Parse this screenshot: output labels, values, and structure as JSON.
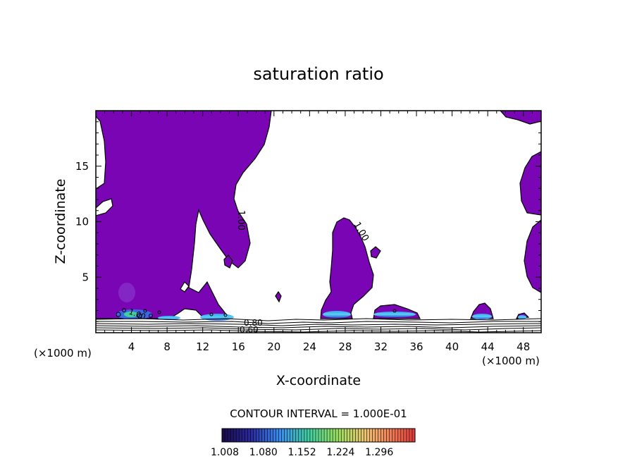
{
  "chart_data": {
    "type": "contour",
    "title": "saturation ratio",
    "xlabel": "X-coordinate",
    "ylabel": "Z-coordinate",
    "x_unit_left": "(×1000 m)",
    "x_unit_right": "(×1000 m)",
    "xlim": [
      0,
      50
    ],
    "ylim": [
      0,
      20
    ],
    "xticks": [
      4,
      8,
      12,
      16,
      20,
      24,
      28,
      32,
      36,
      40,
      44,
      48
    ],
    "xtick_labels": [
      "4",
      "8",
      "12",
      "16",
      "20",
      "24",
      "28",
      "32",
      "36",
      "40",
      "44",
      "48"
    ],
    "yticks": [
      5,
      10,
      15
    ],
    "ytick_labels": [
      "5",
      "10",
      "15"
    ],
    "contour_labels": [
      "1.00",
      "1.00",
      "1.00",
      "0.80",
      "0.60"
    ],
    "contour_interval_text": "CONTOUR INTERVAL = 1.000E-01",
    "colorbar": {
      "tick_labels": [
        "1.008",
        "1.080",
        "1.152",
        "1.224",
        "1.296"
      ],
      "range": [
        1.0,
        1.3
      ]
    },
    "colors": {
      "region_fill": "#7a05b4",
      "colormap": [
        "#1a0a4a",
        "#2a1a8a",
        "#2a4ae0",
        "#3aa0f0",
        "#40d0a0",
        "#50e060",
        "#c0e060",
        "#f0c060",
        "#f08050",
        "#e84040"
      ]
    }
  }
}
